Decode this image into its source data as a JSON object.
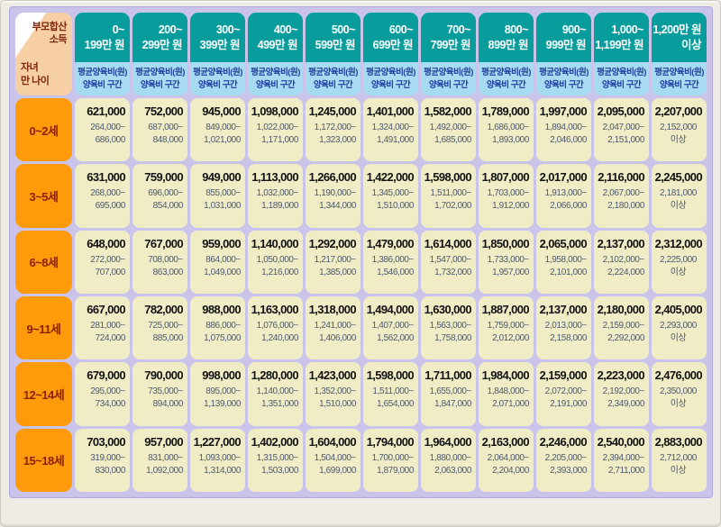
{
  "chart_data": {
    "type": "table",
    "title": "",
    "corner": {
      "top_line1": "부모합산",
      "top_line2": "소득",
      "bottom_line1": "자녀",
      "bottom_line2": "만 나이"
    },
    "subheader": {
      "line1": "평균양육비(원)",
      "line2": "양육비 구간"
    },
    "columns": [
      {
        "line1": "0~",
        "line2": "199만 원"
      },
      {
        "line1": "200~",
        "line2": "299만 원"
      },
      {
        "line1": "300~",
        "line2": "399만 원"
      },
      {
        "line1": "400~",
        "line2": "499만 원"
      },
      {
        "line1": "500~",
        "line2": "599만 원"
      },
      {
        "line1": "600~",
        "line2": "699만 원"
      },
      {
        "line1": "700~",
        "line2": "799만 원"
      },
      {
        "line1": "800~",
        "line2": "899만 원"
      },
      {
        "line1": "900~",
        "line2": "999만 원"
      },
      {
        "line1": "1,000~",
        "line2": "1,199만 원"
      },
      {
        "line1": "1,200만 원",
        "line2": "이상"
      }
    ],
    "rows": [
      {
        "age": "0~2세",
        "cells": [
          {
            "avg": "621,000",
            "range_from": "264,000~",
            "range_to": "686,000"
          },
          {
            "avg": "752,000",
            "range_from": "687,000~",
            "range_to": "848,000"
          },
          {
            "avg": "945,000",
            "range_from": "849,000~",
            "range_to": "1,021,000"
          },
          {
            "avg": "1,098,000",
            "range_from": "1,022,000~",
            "range_to": "1,171,000"
          },
          {
            "avg": "1,245,000",
            "range_from": "1,172,000~",
            "range_to": "1,323,000"
          },
          {
            "avg": "1,401,000",
            "range_from": "1,324,000~",
            "range_to": "1,491,000"
          },
          {
            "avg": "1,582,000",
            "range_from": "1,492,000~",
            "range_to": "1,685,000"
          },
          {
            "avg": "1,789,000",
            "range_from": "1,686,000~",
            "range_to": "1,893,000"
          },
          {
            "avg": "1,997,000",
            "range_from": "1,894,000~",
            "range_to": "2,046,000"
          },
          {
            "avg": "2,095,000",
            "range_from": "2,047,000~",
            "range_to": "2,151,000"
          },
          {
            "avg": "2,207,000",
            "range_from": "2,152,000",
            "range_to": "이상"
          }
        ]
      },
      {
        "age": "3~5세",
        "cells": [
          {
            "avg": "631,000",
            "range_from": "268,000~",
            "range_to": "695,000"
          },
          {
            "avg": "759,000",
            "range_from": "696,000~",
            "range_to": "854,000"
          },
          {
            "avg": "949,000",
            "range_from": "855,000~",
            "range_to": "1,031,000"
          },
          {
            "avg": "1,113,000",
            "range_from": "1,032,000~",
            "range_to": "1,189,000"
          },
          {
            "avg": "1,266,000",
            "range_from": "1,190,000~",
            "range_to": "1,344,000"
          },
          {
            "avg": "1,422,000",
            "range_from": "1,345,000~",
            "range_to": "1,510,000"
          },
          {
            "avg": "1,598,000",
            "range_from": "1,511,000~",
            "range_to": "1,702,000"
          },
          {
            "avg": "1,807,000",
            "range_from": "1,703,000~",
            "range_to": "1,912,000"
          },
          {
            "avg": "2,017,000",
            "range_from": "1,913,000~",
            "range_to": "2,066,000"
          },
          {
            "avg": "2,116,000",
            "range_from": "2,067,000~",
            "range_to": "2,180,000"
          },
          {
            "avg": "2,245,000",
            "range_from": "2,181,000",
            "range_to": "이상"
          }
        ]
      },
      {
        "age": "6~8세",
        "cells": [
          {
            "avg": "648,000",
            "range_from": "272,000~",
            "range_to": "707,000"
          },
          {
            "avg": "767,000",
            "range_from": "708,000~",
            "range_to": "863,000"
          },
          {
            "avg": "959,000",
            "range_from": "864,000~",
            "range_to": "1,049,000"
          },
          {
            "avg": "1,140,000",
            "range_from": "1,050,000~",
            "range_to": "1,216,000"
          },
          {
            "avg": "1,292,000",
            "range_from": "1,217,000~",
            "range_to": "1,385,000"
          },
          {
            "avg": "1,479,000",
            "range_from": "1,386,000~",
            "range_to": "1,546,000"
          },
          {
            "avg": "1,614,000",
            "range_from": "1,547,000~",
            "range_to": "1,732,000"
          },
          {
            "avg": "1,850,000",
            "range_from": "1,733,000~",
            "range_to": "1,957,000"
          },
          {
            "avg": "2,065,000",
            "range_from": "1,958,000~",
            "range_to": "2,101,000"
          },
          {
            "avg": "2,137,000",
            "range_from": "2,102,000~",
            "range_to": "2,224,000"
          },
          {
            "avg": "2,312,000",
            "range_from": "2,225,000",
            "range_to": "이상"
          }
        ]
      },
      {
        "age": "9~11세",
        "cells": [
          {
            "avg": "667,000",
            "range_from": "281,000~",
            "range_to": "724,000"
          },
          {
            "avg": "782,000",
            "range_from": "725,000~",
            "range_to": "885,000"
          },
          {
            "avg": "988,000",
            "range_from": "886,000~",
            "range_to": "1,075,000"
          },
          {
            "avg": "1,163,000",
            "range_from": "1,076,000~",
            "range_to": "1,240,000"
          },
          {
            "avg": "1,318,000",
            "range_from": "1,241,000~",
            "range_to": "1,406,000"
          },
          {
            "avg": "1,494,000",
            "range_from": "1,407,000~",
            "range_to": "1,562,000"
          },
          {
            "avg": "1,630,000",
            "range_from": "1,563,000~",
            "range_to": "1,758,000"
          },
          {
            "avg": "1,887,000",
            "range_from": "1,759,000~",
            "range_to": "2,012,000"
          },
          {
            "avg": "2,137,000",
            "range_from": "2,013,000~",
            "range_to": "2,158,000"
          },
          {
            "avg": "2,180,000",
            "range_from": "2,159,000~",
            "range_to": "2,292,000"
          },
          {
            "avg": "2,405,000",
            "range_from": "2,293,000",
            "range_to": "이상"
          }
        ]
      },
      {
        "age": "12~14세",
        "cells": [
          {
            "avg": "679,000",
            "range_from": "295,000~",
            "range_to": "734,000"
          },
          {
            "avg": "790,000",
            "range_from": "735,000~",
            "range_to": "894,000"
          },
          {
            "avg": "998,000",
            "range_from": "895,000~",
            "range_to": "1,139,000"
          },
          {
            "avg": "1,280,000",
            "range_from": "1,140,000~",
            "range_to": "1,351,000"
          },
          {
            "avg": "1,423,000",
            "range_from": "1,352,000~",
            "range_to": "1,510,000"
          },
          {
            "avg": "1,598,000",
            "range_from": "1,511,000~",
            "range_to": "1,654,000"
          },
          {
            "avg": "1,711,000",
            "range_from": "1,655,000~",
            "range_to": "1,847,000"
          },
          {
            "avg": "1,984,000",
            "range_from": "1,848,000~",
            "range_to": "2,071,000"
          },
          {
            "avg": "2,159,000",
            "range_from": "2,072,000~",
            "range_to": "2,191,000"
          },
          {
            "avg": "2,223,000",
            "range_from": "2,192,000~",
            "range_to": "2,349,000"
          },
          {
            "avg": "2,476,000",
            "range_from": "2,350,000",
            "range_to": "이상"
          }
        ]
      },
      {
        "age": "15~18세",
        "cells": [
          {
            "avg": "703,000",
            "range_from": "319,000~",
            "range_to": "830,000"
          },
          {
            "avg": "957,000",
            "range_from": "831,000~",
            "range_to": "1,092,000"
          },
          {
            "avg": "1,227,000",
            "range_from": "1,093,000~",
            "range_to": "1,314,000"
          },
          {
            "avg": "1,402,000",
            "range_from": "1,315,000~",
            "range_to": "1,503,000"
          },
          {
            "avg": "1,604,000",
            "range_from": "1,504,000~",
            "range_to": "1,699,000"
          },
          {
            "avg": "1,794,000",
            "range_from": "1,700,000~",
            "range_to": "1,879,000"
          },
          {
            "avg": "1,964,000",
            "range_from": "1,880,000~",
            "range_to": "2,063,000"
          },
          {
            "avg": "2,163,000",
            "range_from": "2,064,000~",
            "range_to": "2,204,000"
          },
          {
            "avg": "2,246,000",
            "range_from": "2,205,000~",
            "range_to": "2,393,000"
          },
          {
            "avg": "2,540,000",
            "range_from": "2,394,000~",
            "range_to": "2,711,000"
          },
          {
            "avg": "2,883,000",
            "range_from": "2,712,000",
            "range_to": "이상"
          }
        ]
      }
    ]
  },
  "colors": {
    "table_background": "#cbc4ea",
    "column_header": "#089c9c",
    "column_subheader": "#a7dbf2",
    "subheader_text": "#1f3e9e",
    "age_header": "#ff9a0a",
    "age_header_text": "#8c2000",
    "data_cell": "#f0ecc6",
    "average_text": "#121212",
    "range_text": "#4d5a6e",
    "corner_peach": "#f7cfa5",
    "corner_text": "#7c2508",
    "page_background": "#edebe3"
  }
}
